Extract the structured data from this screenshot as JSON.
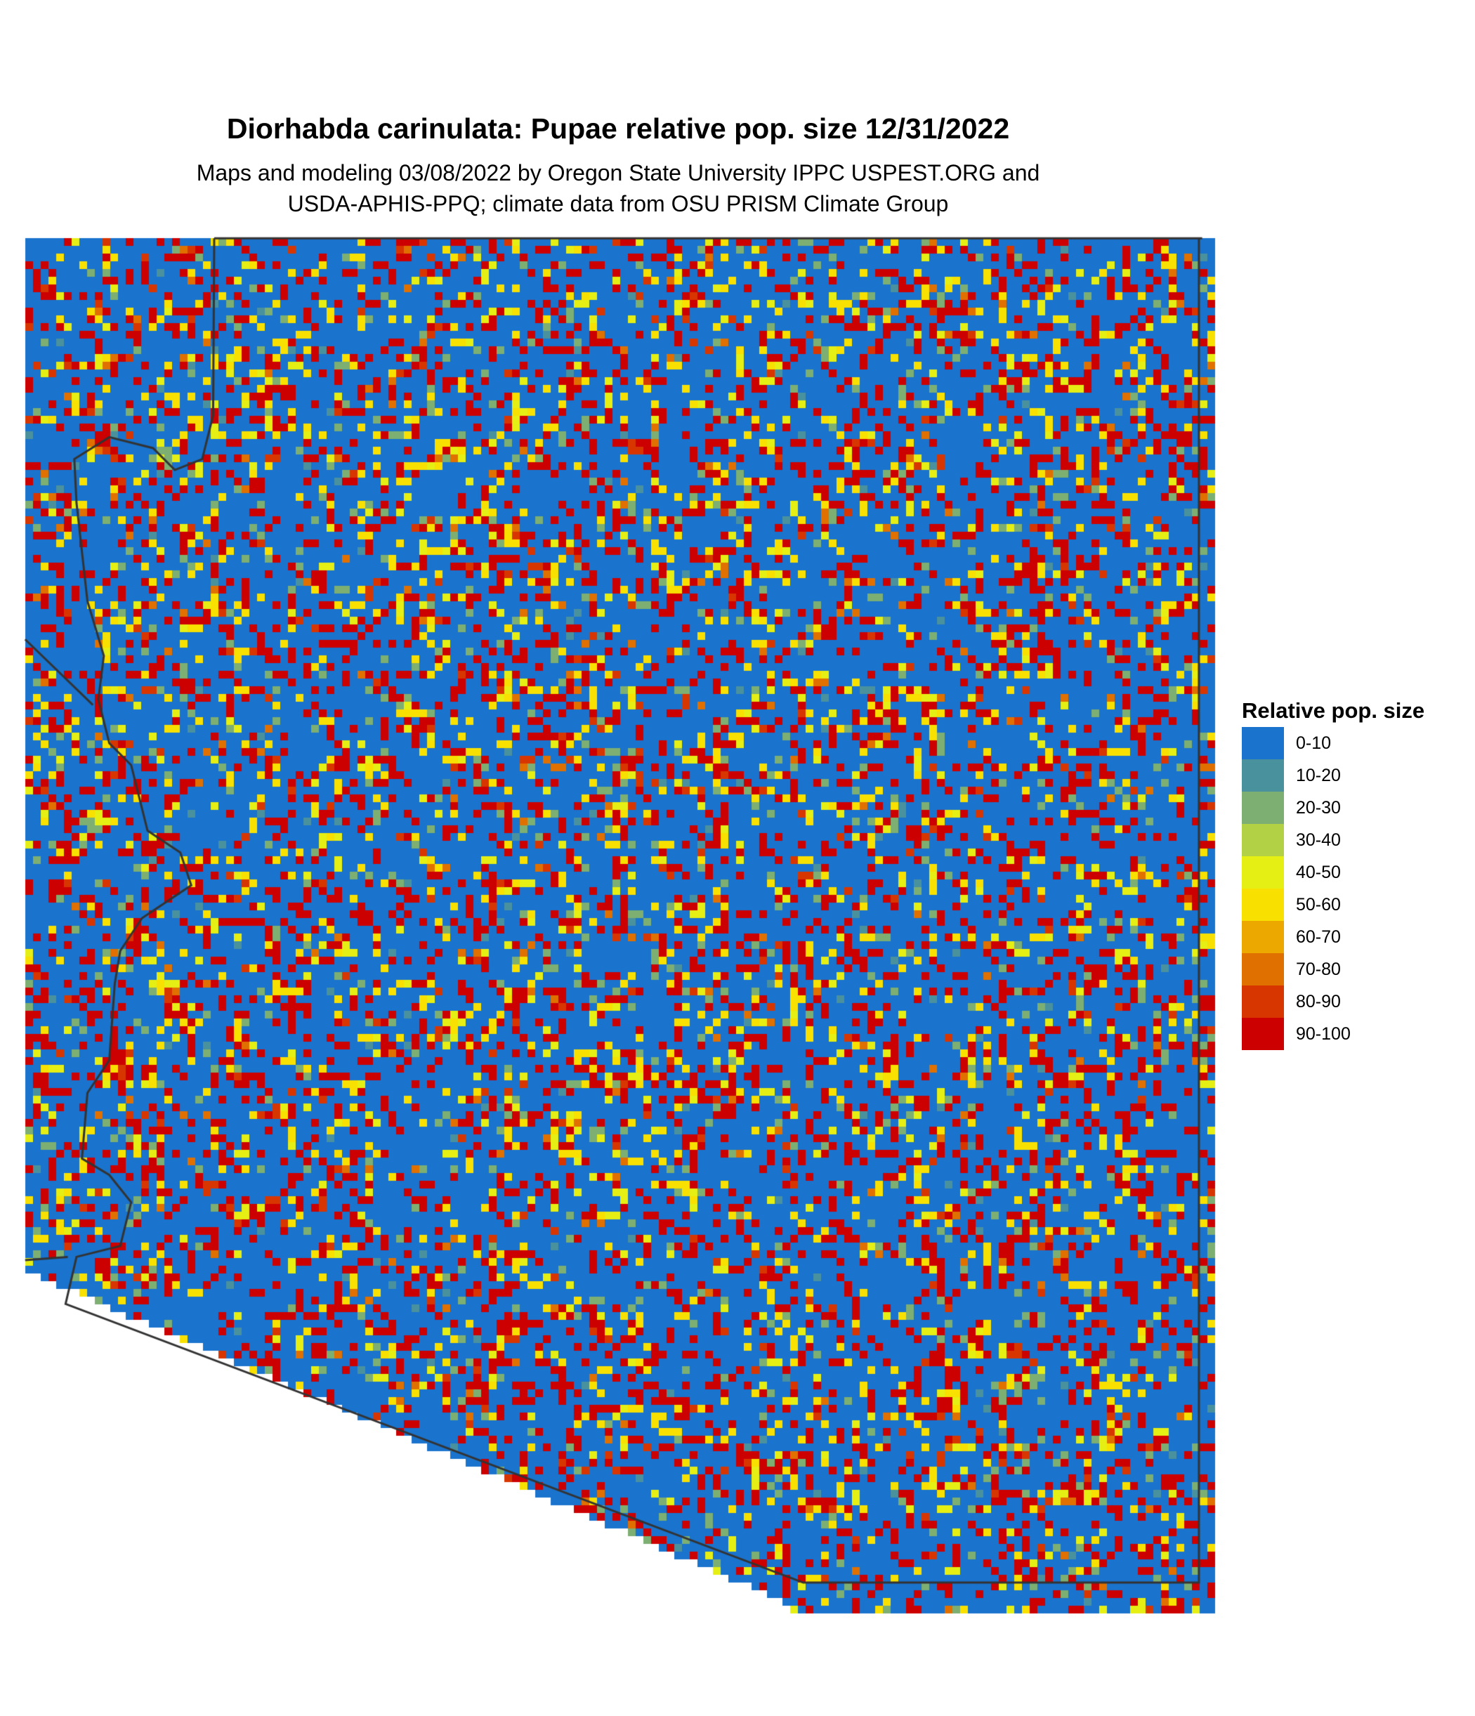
{
  "title": "Diorhabda carinulata: Pupae relative pop. size 12/31/2022",
  "subtitle_line1": "Maps and modeling 03/08/2022 by Oregon State University IPPC USPEST.ORG and",
  "subtitle_line2": "USDA-APHIS-PPQ; climate data from OSU PRISM Climate Group",
  "legend": {
    "title": "Relative pop. size",
    "items": [
      {
        "label": "0-10",
        "color": "#1a73cc"
      },
      {
        "label": "10-20",
        "color": "#4a919e"
      },
      {
        "label": "20-30",
        "color": "#7dae72"
      },
      {
        "label": "30-40",
        "color": "#b2d145"
      },
      {
        "label": "40-50",
        "color": "#e5ef14"
      },
      {
        "label": "50-60",
        "color": "#f8e100"
      },
      {
        "label": "60-70",
        "color": "#eda800"
      },
      {
        "label": "70-80",
        "color": "#e07000"
      },
      {
        "label": "80-90",
        "color": "#d83600"
      },
      {
        "label": "90-100",
        "color": "#cc0000"
      }
    ]
  },
  "boundary_color": "#333333"
}
